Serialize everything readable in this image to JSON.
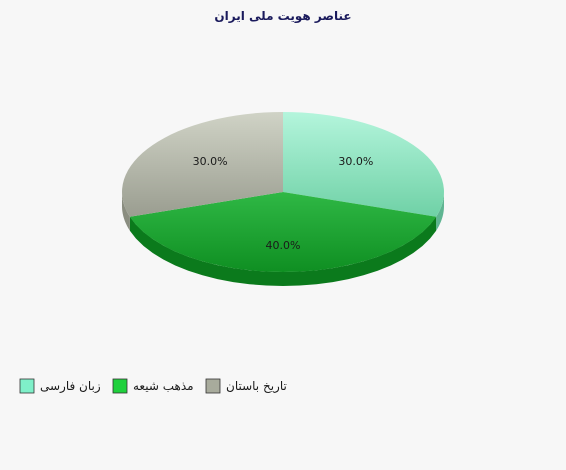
{
  "chart_data": {
    "type": "pie",
    "title": "عناصر هویت ملی ایران",
    "slices": [
      {
        "label": "زبان فارسی",
        "value": 30.0,
        "display": "30.0%",
        "color": "#86e8c0"
      },
      {
        "label": "مذهب شیعه",
        "value": 40.0,
        "display": "40.0%",
        "color": "#1cb83a"
      },
      {
        "label": "تاریخ باستان",
        "value": 30.0,
        "display": "30.0%",
        "color": "#a8ab9c"
      }
    ],
    "legend_position": "bottom-left"
  }
}
